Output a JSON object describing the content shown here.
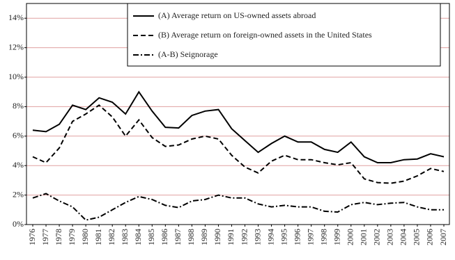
{
  "chart_data": {
    "type": "line",
    "categories": [
      "1976",
      "1977",
      "1978",
      "1979",
      "1980",
      "1981",
      "1982",
      "1983",
      "1984",
      "1985",
      "1986",
      "1987",
      "1988",
      "1989",
      "1990",
      "1991",
      "1992",
      "1993",
      "1994",
      "1995",
      "1996",
      "1997",
      "1998",
      "1999",
      "2000",
      "2001",
      "2002",
      "2003",
      "2004",
      "2005",
      "2006",
      "2007"
    ],
    "series": [
      {
        "name": "(A) Average return on US-owned assets abroad",
        "color": "#000000",
        "dash": "solid",
        "values": [
          6.4,
          6.3,
          6.8,
          8.1,
          7.8,
          8.6,
          8.3,
          7.5,
          9.0,
          7.7,
          6.6,
          6.55,
          7.4,
          7.7,
          7.8,
          6.5,
          5.7,
          4.9,
          5.5,
          6.0,
          5.6,
          5.6,
          5.1,
          4.9,
          5.6,
          4.6,
          4.2,
          4.2,
          4.4,
          4.45,
          4.8,
          4.6
        ]
      },
      {
        "name": "(B) Average return on foreign-owned assets in the United States",
        "color": "#000000",
        "dash": "dashed",
        "values": [
          4.6,
          4.2,
          5.2,
          7.0,
          7.5,
          8.1,
          7.3,
          6.0,
          7.1,
          5.9,
          5.3,
          5.4,
          5.8,
          6.0,
          5.8,
          4.7,
          3.9,
          3.5,
          4.3,
          4.7,
          4.4,
          4.4,
          4.2,
          4.05,
          4.2,
          3.1,
          2.85,
          2.8,
          2.95,
          3.3,
          3.8,
          3.6
        ]
      },
      {
        "name": "(A-B) Seignorage",
        "color": "#000000",
        "dash": "dashdot",
        "values": [
          1.8,
          2.1,
          1.6,
          1.2,
          0.3,
          0.5,
          1.0,
          1.5,
          1.9,
          1.7,
          1.3,
          1.15,
          1.6,
          1.7,
          2.0,
          1.8,
          1.8,
          1.4,
          1.2,
          1.3,
          1.2,
          1.2,
          0.9,
          0.85,
          1.35,
          1.5,
          1.35,
          1.45,
          1.5,
          1.2,
          1.0,
          1.0
        ]
      }
    ],
    "ylim": [
      0,
      15
    ],
    "yticks": [
      {
        "value": 0,
        "label": "0%"
      },
      {
        "value": 2,
        "label": "2%"
      },
      {
        "value": 4,
        "label": "4%"
      },
      {
        "value": 6,
        "label": "6%"
      },
      {
        "value": 8,
        "label": "8%"
      },
      {
        "value": 10,
        "label": "10%"
      },
      {
        "value": 12,
        "label": "12%"
      },
      {
        "value": 14,
        "label": "14%"
      }
    ],
    "grid": true,
    "grid_color": "#e0a0a0",
    "legend": "top-right"
  }
}
